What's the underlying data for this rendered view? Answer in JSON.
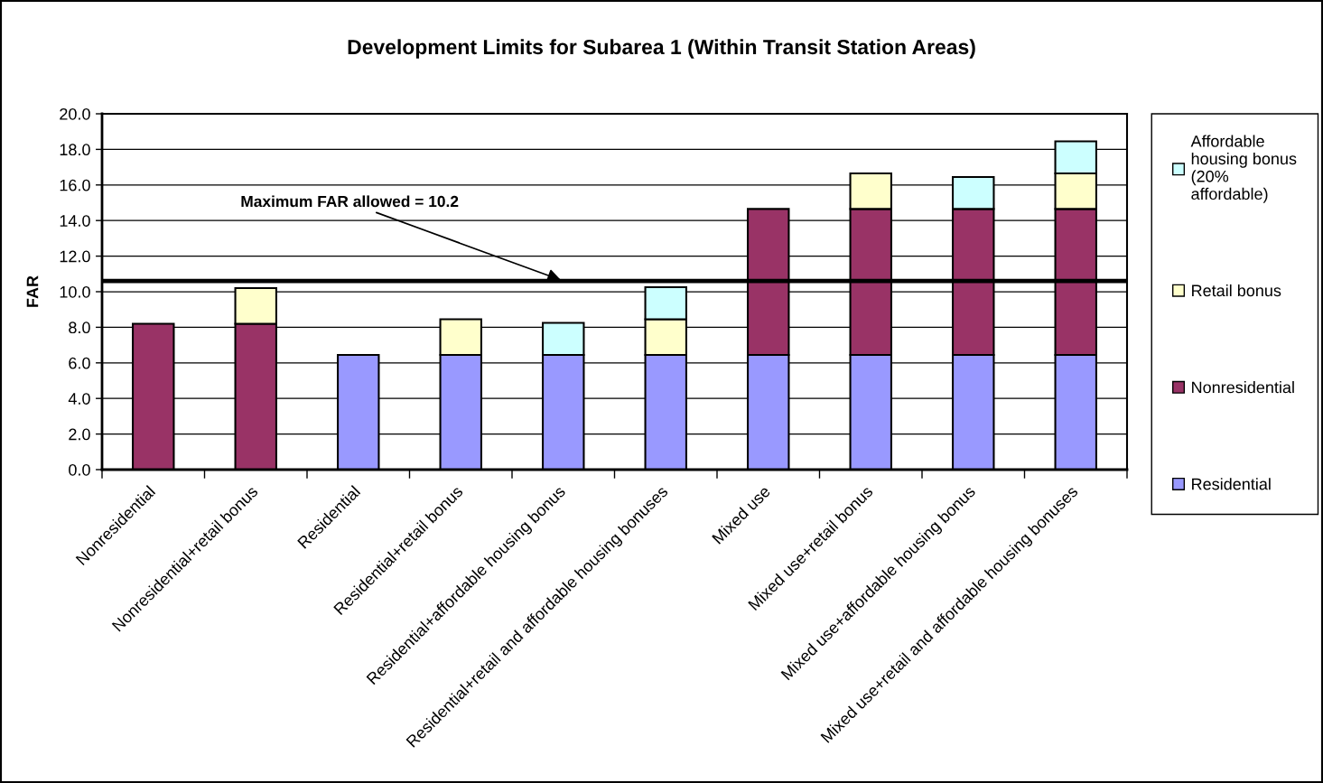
{
  "chart_data": {
    "type": "bar",
    "title": "Development Limits for Subarea 1 (Within Transit Station Areas)",
    "ylabel": "FAR",
    "categories": [
      "Nonresidential",
      "Nonresidential+retail bonus",
      "Residential",
      "Residential+retail bonus",
      "Residential+affordable housing bonus",
      "Residential+retail and affordable housing bonuses",
      "Mixed use",
      "Mixed use+retail bonus",
      "Mixed use+affordable housing bonus",
      "Mixed use+retail and affordable housing bonuses"
    ],
    "stacked": true,
    "series": [
      {
        "name": "Residential",
        "color": "#9999ff",
        "values": [
          null,
          null,
          6.45,
          6.45,
          6.45,
          6.45,
          6.45,
          6.45,
          6.45,
          6.45
        ]
      },
      {
        "name": "Nonresidential",
        "color": "#993366",
        "values": [
          8.2,
          8.2,
          null,
          null,
          null,
          null,
          8.2,
          8.2,
          8.2,
          8.2
        ]
      },
      {
        "name": "Retail bonus",
        "color": "#ffffcc",
        "values": [
          null,
          2.0,
          null,
          2.0,
          null,
          2.0,
          null,
          2.0,
          null,
          2.0
        ]
      },
      {
        "name": "Affordable housing bonus (20% affordable)",
        "color": "#ccffff",
        "values": [
          null,
          null,
          null,
          null,
          1.8,
          1.8,
          null,
          null,
          1.8,
          1.8
        ]
      }
    ],
    "ylim": [
      0,
      20
    ],
    "yticks": [
      {
        "value": 0,
        "label": "0.0"
      },
      {
        "value": 2,
        "label": "2.0"
      },
      {
        "value": 4,
        "label": "4.0"
      },
      {
        "value": 6,
        "label": "6.0"
      },
      {
        "value": 8,
        "label": "8.0"
      },
      {
        "value": 10,
        "label": "10.0"
      },
      {
        "value": 12,
        "label": "12.0"
      },
      {
        "value": 14,
        "label": "14.0"
      },
      {
        "value": 16,
        "label": "16.0"
      },
      {
        "value": 18,
        "label": "18.0"
      },
      {
        "value": 20,
        "label": "20.0"
      }
    ],
    "grid": "y",
    "legend": "right",
    "ref_lines": [
      {
        "axis": "y",
        "value": 10.6,
        "color": "#000000"
      }
    ],
    "annotations": [
      {
        "text": "Maximum FAR allowed = 10.2",
        "x": "Residential+affordable housing bonus",
        "y": 10.6
      }
    ]
  }
}
